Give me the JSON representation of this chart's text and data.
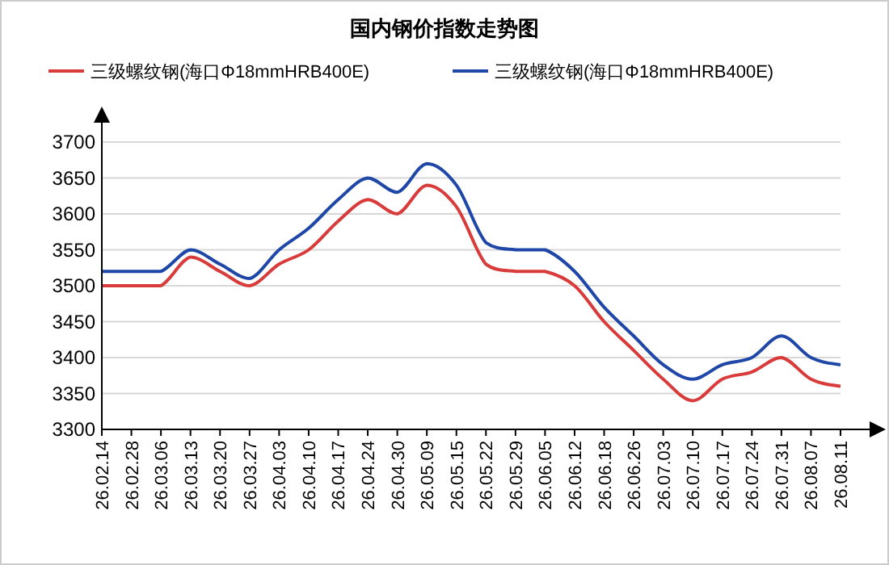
{
  "chart_data": {
    "type": "line",
    "title": "国内钢价指数走势图",
    "categories": [
      "26.02.14",
      "26.02.28",
      "26.03.06",
      "26.03.13",
      "26.03.20",
      "26.03.27",
      "26.04.03",
      "26.04.10",
      "26.04.17",
      "26.04.24",
      "26.04.30",
      "26.05.09",
      "26.05.15",
      "26.05.22",
      "26.05.29",
      "26.06.05",
      "26.06.12",
      "26.06.18",
      "26.06.26",
      "26.07.03",
      "26.07.10",
      "26.07.17",
      "26.07.24",
      "26.07.31",
      "26.08.07",
      "26.08.11"
    ],
    "series": [
      {
        "name": "三级螺纹钢(海口Φ18mmHRB400E)",
        "color": "#d93a3a",
        "values": [
          3500,
          3500,
          3500,
          3540,
          3520,
          3500,
          3530,
          3550,
          3590,
          3620,
          3600,
          3640,
          3610,
          3530,
          3520,
          3520,
          3500,
          3450,
          3410,
          3370,
          3340,
          3370,
          3380,
          3400,
          3370,
          3360
        ]
      },
      {
        "name": "三级螺纹钢(海口Φ18mmHRB400E)",
        "color": "#1f47a8",
        "values": [
          3520,
          3520,
          3520,
          3550,
          3530,
          3510,
          3550,
          3580,
          3620,
          3650,
          3630,
          3670,
          3640,
          3560,
          3550,
          3550,
          3520,
          3470,
          3430,
          3390,
          3370,
          3390,
          3400,
          3430,
          3400,
          3390
        ]
      }
    ],
    "ylim": [
      3300,
      3700
    ],
    "yticks": [
      3300,
      3350,
      3400,
      3450,
      3500,
      3550,
      3600,
      3650,
      3700
    ],
    "grid": "y",
    "legend": "top"
  }
}
